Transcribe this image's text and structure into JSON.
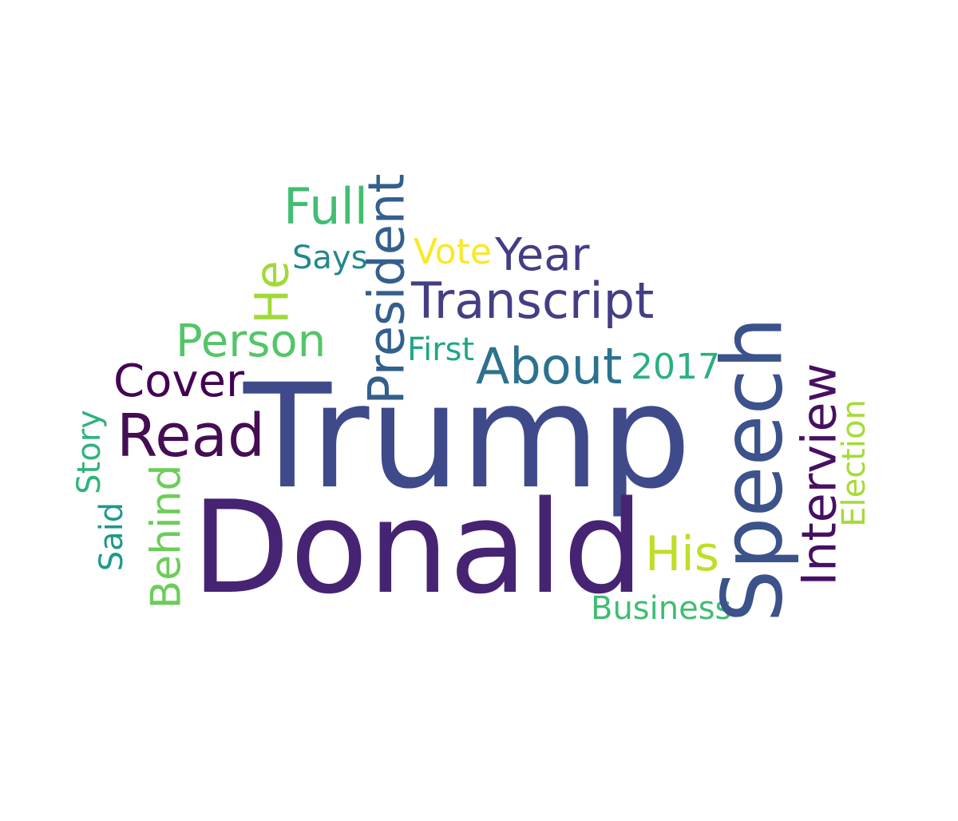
{
  "words": {
    "trump": {
      "text": "Trump",
      "color": "#3e4a89"
    },
    "donald": {
      "text": "Donald",
      "color": "#472373"
    },
    "speech": {
      "text": "Speech",
      "color": "#3b528b"
    },
    "president": {
      "text": "President",
      "color": "#345f8d"
    },
    "transcript": {
      "text": "Transcript",
      "color": "#433e85"
    },
    "about": {
      "text": "About",
      "color": "#2c728e"
    },
    "read": {
      "text": "Read",
      "color": "#450d54"
    },
    "interview": {
      "text": "Interview",
      "color": "#471063"
    },
    "year": {
      "text": "Year",
      "color": "#433d84"
    },
    "full": {
      "text": "Full",
      "color": "#42be71"
    },
    "person": {
      "text": "Person",
      "color": "#54c568"
    },
    "cover": {
      "text": "Cover",
      "color": "#440154"
    },
    "behind": {
      "text": "Behind",
      "color": "#6ccd5a"
    },
    "his": {
      "text": "His",
      "color": "#bddf26"
    },
    "he": {
      "text": "He",
      "color": "#a0da39"
    },
    "vote": {
      "text": "Vote",
      "color": "#fde725"
    },
    "says": {
      "text": "Says",
      "color": "#23888e"
    },
    "first": {
      "text": "First",
      "color": "#21a685"
    },
    "y2017": {
      "text": "2017",
      "color": "#2ab07f"
    },
    "election": {
      "text": "Election",
      "color": "#a5db36"
    },
    "business": {
      "text": "Business",
      "color": "#40bd72"
    },
    "story": {
      "text": "Story",
      "color": "#2fb47c"
    },
    "said": {
      "text": "Said",
      "color": "#1f988b"
    }
  }
}
